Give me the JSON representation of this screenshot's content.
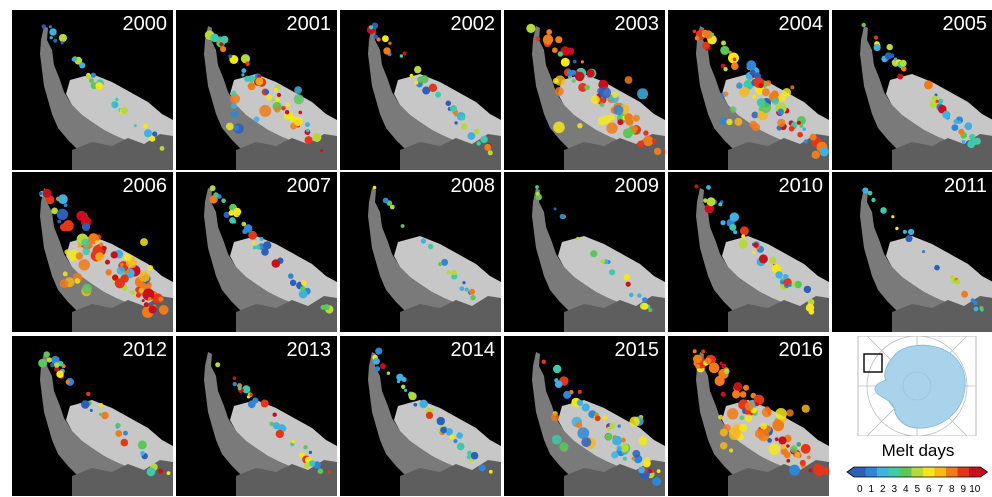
{
  "panels": [
    {
      "year": "2000",
      "melt": 0.3,
      "hot": 0.1
    },
    {
      "year": "2001",
      "melt": 0.55,
      "hot": 0.45
    },
    {
      "year": "2002",
      "melt": 0.4,
      "hot": 0.15
    },
    {
      "year": "2003",
      "melt": 0.7,
      "hot": 0.55
    },
    {
      "year": "2004",
      "melt": 0.75,
      "hot": 0.5
    },
    {
      "year": "2005",
      "melt": 0.45,
      "hot": 0.2
    },
    {
      "year": "2006",
      "melt": 0.95,
      "hot": 0.8
    },
    {
      "year": "2007",
      "melt": 0.45,
      "hot": 0.15
    },
    {
      "year": "2008",
      "melt": 0.1,
      "hot": 0.1
    },
    {
      "year": "2009",
      "melt": 0.15,
      "hot": 0.05
    },
    {
      "year": "2010",
      "melt": 0.5,
      "hot": 0.3
    },
    {
      "year": "2011",
      "melt": 0.15,
      "hot": 0.15
    },
    {
      "year": "2012",
      "melt": 0.4,
      "hot": 0.25
    },
    {
      "year": "2013",
      "melt": 0.35,
      "hot": 0.35
    },
    {
      "year": "2014",
      "melt": 0.35,
      "hot": 0.1
    },
    {
      "year": "2015",
      "melt": 0.55,
      "hot": 0.4
    },
    {
      "year": "2016",
      "melt": 0.9,
      "hot": 0.85
    }
  ],
  "legend": {
    "title": "Melt days",
    "ticks": [
      "0",
      "1",
      "2",
      "3",
      "4",
      "5",
      "6",
      "7",
      "8",
      "9",
      "10"
    ],
    "colors": [
      "#2b5fb8",
      "#2f86d6",
      "#3fb0e0",
      "#3fc9a8",
      "#5cc65a",
      "#b6d83a",
      "#f3e61c",
      "#f7b818",
      "#f07b1a",
      "#e3361a",
      "#c8101c"
    ]
  },
  "colors": {
    "ice": "#c7c7c7",
    "land": "#8a8a8a",
    "background": "#000000",
    "antarctica": "#a9d3ea"
  }
}
